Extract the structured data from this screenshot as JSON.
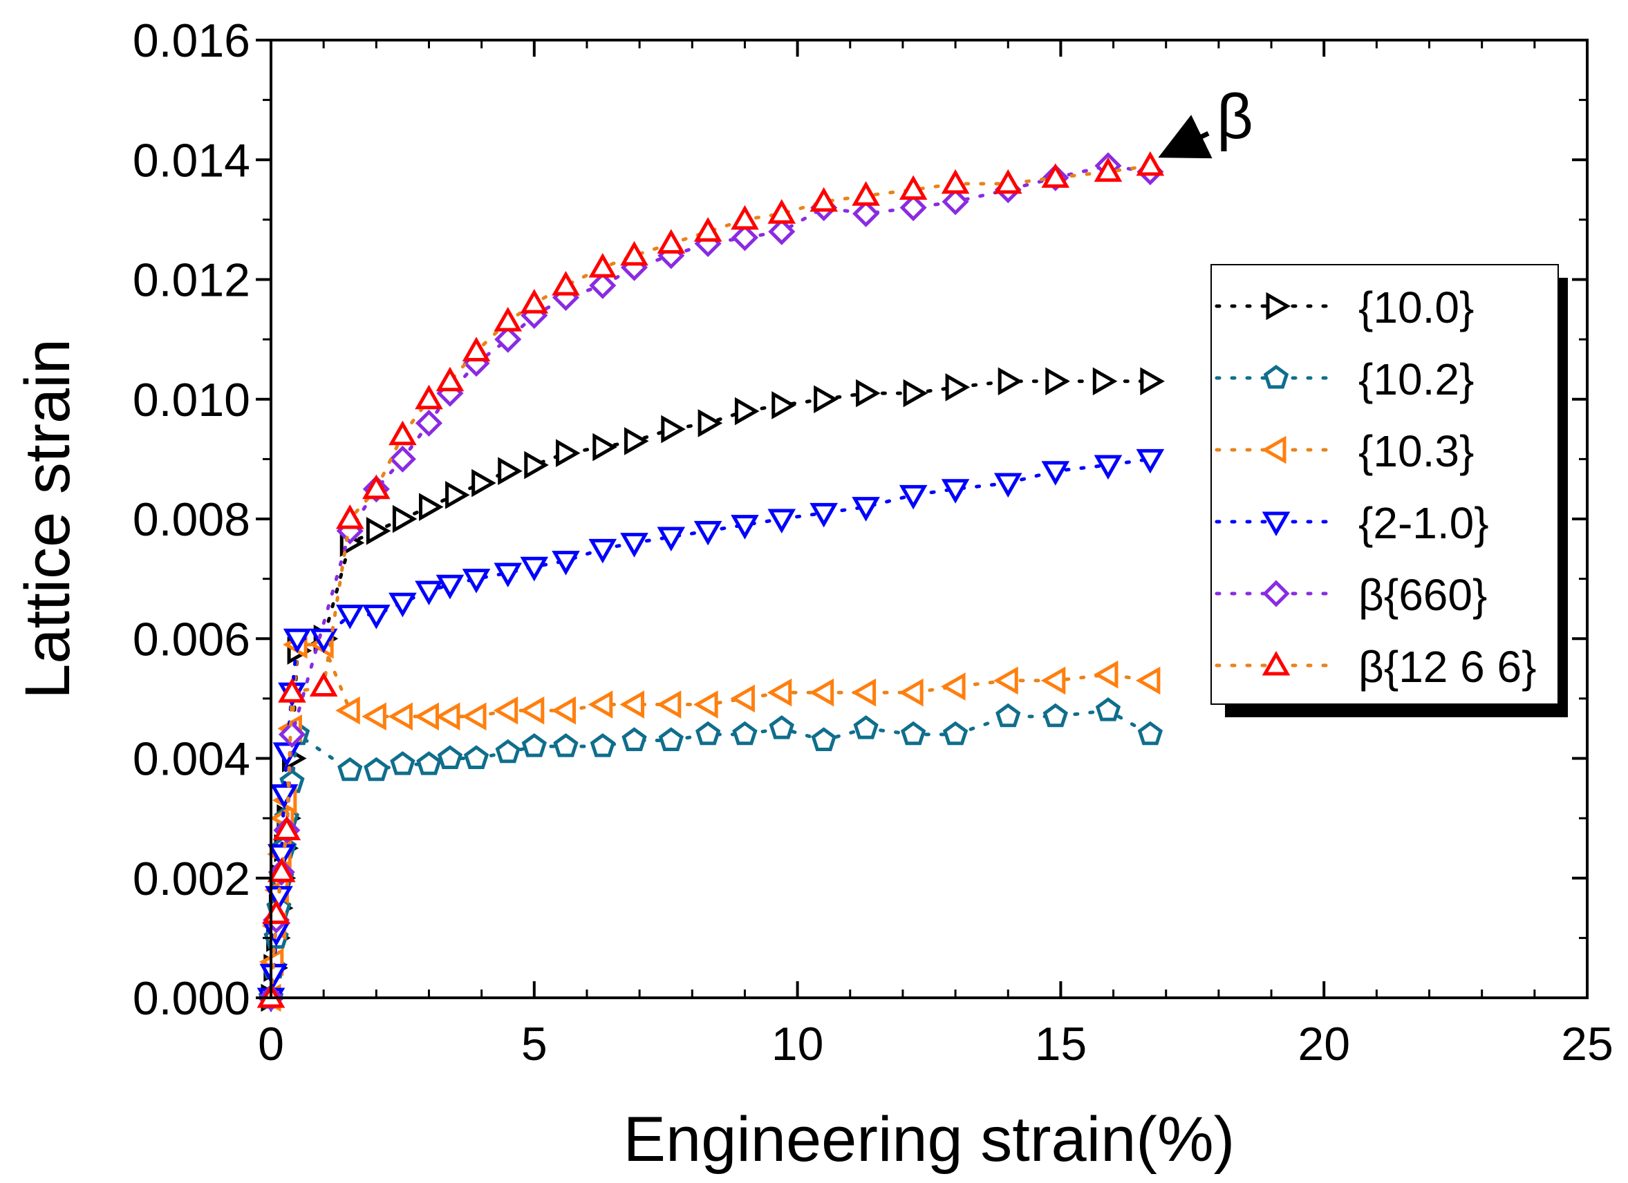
{
  "chart_data": {
    "type": "scatter",
    "title": "",
    "xlabel": "Engineering strain(%)",
    "ylabel": "Lattice strain",
    "xlim": [
      0,
      25
    ],
    "ylim": [
      0,
      0.016
    ],
    "x_ticks": [
      0,
      5,
      10,
      15,
      20,
      25
    ],
    "x_tick_labels": [
      "0",
      "5",
      "10",
      "15",
      "20",
      "25"
    ],
    "y_ticks": [
      0,
      0.002,
      0.004,
      0.006,
      0.008,
      0.01,
      0.012,
      0.014,
      0.016
    ],
    "y_tick_labels": [
      "0.000",
      "0.002",
      "0.004",
      "0.006",
      "0.008",
      "0.010",
      "0.012",
      "0.014",
      "0.016"
    ],
    "grid": false,
    "legend_position": "right",
    "annotation": {
      "text": "β",
      "target_series": "β{12 6 6}",
      "x": 16.9,
      "y": 0.0139
    },
    "series": [
      {
        "name": "{10.0}",
        "marker": "triangle-right",
        "color": "#000000",
        "line_color": "#000000",
        "x": [
          0.0,
          0.05,
          0.1,
          0.15,
          0.2,
          0.25,
          0.3,
          0.4,
          0.5,
          1.0,
          1.5,
          2.0,
          2.5,
          3.0,
          3.5,
          4.0,
          4.5,
          5.0,
          5.6,
          6.3,
          6.9,
          7.6,
          8.3,
          9.0,
          9.7,
          10.5,
          11.3,
          12.2,
          13.0,
          14.0,
          14.9,
          15.8,
          16.7
        ],
        "y": [
          0.0,
          0.0005,
          0.001,
          0.0015,
          0.002,
          0.0025,
          0.003,
          0.004,
          0.0058,
          0.006,
          0.0076,
          0.0078,
          0.008,
          0.0082,
          0.0084,
          0.0086,
          0.0088,
          0.0089,
          0.0091,
          0.0092,
          0.0093,
          0.0095,
          0.0096,
          0.0098,
          0.0099,
          0.01,
          0.0101,
          0.0101,
          0.0102,
          0.0103,
          0.0103,
          0.0103,
          0.0103
        ]
      },
      {
        "name": "{10.2}",
        "marker": "pentagon",
        "color": "#0f6e8c",
        "line_color": "#0f6e8c",
        "x": [
          0.0,
          0.05,
          0.1,
          0.15,
          0.2,
          0.25,
          0.3,
          0.4,
          0.5,
          1.5,
          2.0,
          2.5,
          3.0,
          3.4,
          3.9,
          4.5,
          5.0,
          5.6,
          6.3,
          6.9,
          7.6,
          8.3,
          9.0,
          9.7,
          10.5,
          11.3,
          12.2,
          13.0,
          14.0,
          14.9,
          15.9,
          16.7
        ],
        "y": [
          0.0,
          0.0005,
          0.001,
          0.0015,
          0.002,
          0.0025,
          0.003,
          0.0036,
          0.0044,
          0.0038,
          0.0038,
          0.0039,
          0.0039,
          0.004,
          0.004,
          0.0041,
          0.0042,
          0.0042,
          0.0042,
          0.0043,
          0.0043,
          0.0044,
          0.0044,
          0.0045,
          0.0043,
          0.0045,
          0.0044,
          0.0044,
          0.0047,
          0.0047,
          0.0048,
          0.0044
        ]
      },
      {
        "name": "{10.3}",
        "marker": "triangle-left",
        "color": "#ff7f0e",
        "line_color": "#e8831a",
        "x": [
          0.0,
          0.05,
          0.1,
          0.15,
          0.2,
          0.25,
          0.3,
          0.4,
          0.5,
          1.0,
          1.5,
          2.0,
          2.5,
          3.0,
          3.4,
          3.9,
          4.5,
          5.0,
          5.6,
          6.3,
          6.9,
          7.6,
          8.3,
          9.0,
          9.7,
          10.5,
          11.3,
          12.2,
          13.0,
          14.0,
          14.9,
          15.9,
          16.7
        ],
        "y": [
          0.0,
          0.0006,
          0.0012,
          0.0018,
          0.0024,
          0.003,
          0.0033,
          0.0045,
          0.0059,
          0.0059,
          0.0048,
          0.0047,
          0.0047,
          0.0047,
          0.0047,
          0.0047,
          0.0048,
          0.0048,
          0.0048,
          0.0049,
          0.0049,
          0.0049,
          0.0049,
          0.005,
          0.0051,
          0.0051,
          0.0051,
          0.0051,
          0.0052,
          0.0053,
          0.0053,
          0.0054,
          0.0053
        ]
      },
      {
        "name": "{2-1.0}",
        "marker": "triangle-down",
        "color": "#0000ff",
        "line_color": "#0000ff",
        "x": [
          0.0,
          0.05,
          0.1,
          0.15,
          0.2,
          0.25,
          0.3,
          0.4,
          0.5,
          1.0,
          1.5,
          2.0,
          2.5,
          3.0,
          3.4,
          3.9,
          4.5,
          5.0,
          5.6,
          6.3,
          6.9,
          7.6,
          8.3,
          9.0,
          9.7,
          10.5,
          11.3,
          12.2,
          13.0,
          14.0,
          14.9,
          15.9,
          16.7
        ],
        "y": [
          0.0,
          0.0004,
          0.0011,
          0.0017,
          0.0024,
          0.0034,
          0.0041,
          0.0051,
          0.006,
          0.006,
          0.0064,
          0.0064,
          0.0066,
          0.0068,
          0.0069,
          0.007,
          0.0071,
          0.0072,
          0.0073,
          0.0075,
          0.0076,
          0.0077,
          0.0078,
          0.0079,
          0.008,
          0.0081,
          0.0082,
          0.0084,
          0.0085,
          0.0086,
          0.0088,
          0.0089,
          0.009
        ]
      },
      {
        "name": "β{660}",
        "marker": "diamond",
        "color": "#8a2be2",
        "line_color": "#8a2be2",
        "x": [
          0.0,
          0.1,
          0.2,
          0.3,
          0.4,
          1.5,
          2.0,
          2.5,
          3.0,
          3.4,
          3.9,
          4.5,
          5.0,
          5.6,
          6.3,
          6.9,
          7.6,
          8.3,
          9.0,
          9.7,
          10.5,
          11.3,
          12.2,
          13.0,
          14.0,
          14.9,
          15.9,
          16.7
        ],
        "y": [
          0.0,
          0.0013,
          0.0021,
          0.0028,
          0.0044,
          0.0078,
          0.0085,
          0.009,
          0.0096,
          0.0101,
          0.0106,
          0.011,
          0.0114,
          0.0117,
          0.0119,
          0.0122,
          0.0124,
          0.0126,
          0.0127,
          0.0128,
          0.0132,
          0.0131,
          0.0132,
          0.0133,
          0.0135,
          0.0137,
          0.0139,
          0.0138
        ]
      },
      {
        "name": "β{12 6 6}",
        "marker": "triangle-up",
        "color": "#ff0000",
        "line_color": "#e8831a",
        "x": [
          0.0,
          0.1,
          0.2,
          0.3,
          0.4,
          1.0,
          1.5,
          2.0,
          2.5,
          3.0,
          3.4,
          3.9,
          4.5,
          5.0,
          5.6,
          6.3,
          6.9,
          7.6,
          8.3,
          9.0,
          9.7,
          10.5,
          11.3,
          12.2,
          13.0,
          14.0,
          14.9,
          15.9,
          16.7
        ],
        "y": [
          0.0,
          0.0014,
          0.0021,
          0.0028,
          0.0051,
          0.0052,
          0.008,
          0.0085,
          0.0094,
          0.01,
          0.0103,
          0.0108,
          0.0113,
          0.0116,
          0.0119,
          0.0122,
          0.0124,
          0.0126,
          0.0128,
          0.013,
          0.0131,
          0.0133,
          0.0134,
          0.0135,
          0.0136,
          0.0136,
          0.0137,
          0.0138,
          0.0139
        ]
      }
    ]
  }
}
